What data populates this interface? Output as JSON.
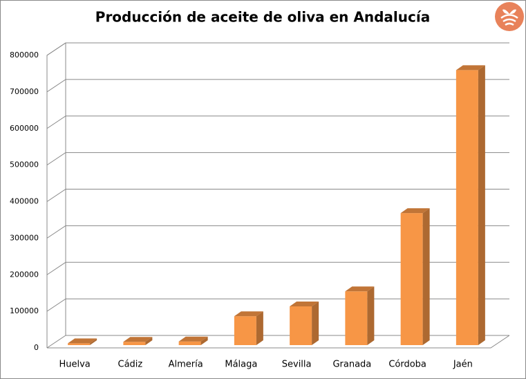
{
  "chart_data": {
    "type": "bar3d",
    "title": "Producción de aceite de oliva en Andalucía",
    "categories": [
      "Huelva",
      "Cádiz",
      "Almería",
      "Málaga",
      "Sevilla",
      "Granada",
      "Córdoba",
      "Jaén"
    ],
    "values": [
      5000,
      9000,
      10000,
      79000,
      106000,
      147000,
      361000,
      752000
    ],
    "color": "#f79646",
    "ylim": [
      0,
      800000
    ],
    "yticks": [
      0,
      100000,
      200000,
      300000,
      400000,
      500000,
      600000,
      700000,
      800000
    ],
    "grid": true
  }
}
